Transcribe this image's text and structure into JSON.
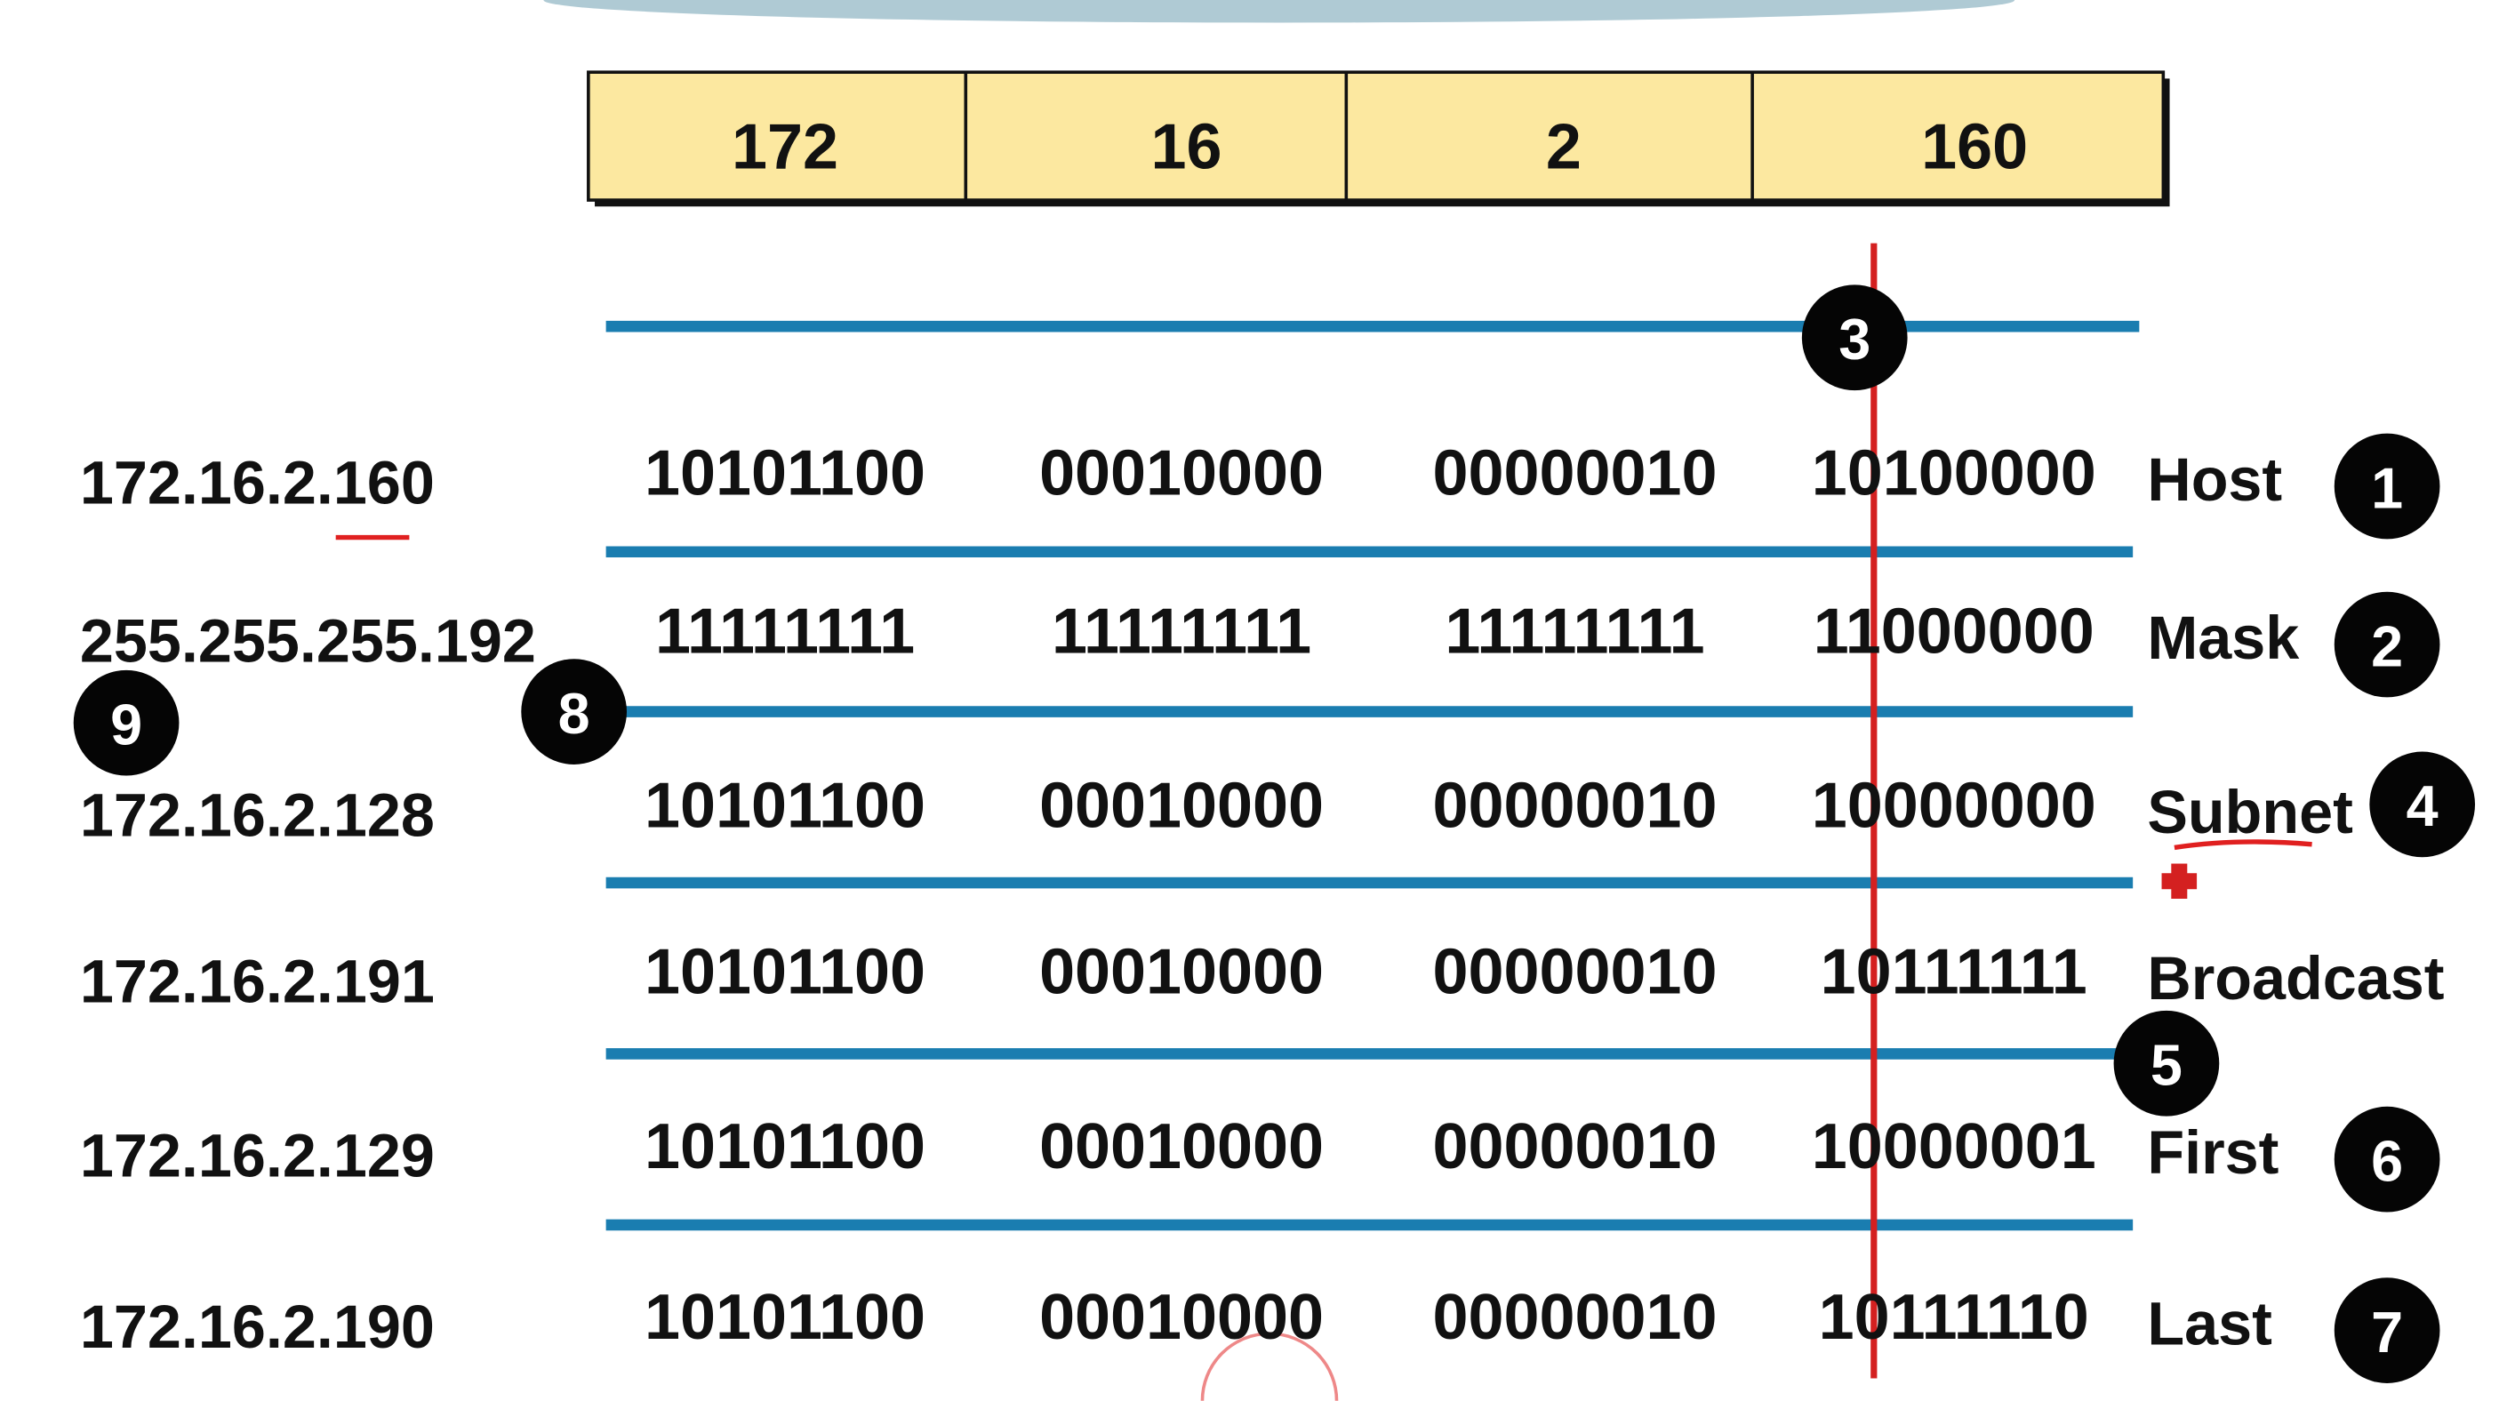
{
  "header": {
    "octets": [
      "172",
      "16",
      "2",
      "160"
    ]
  },
  "rows": [
    {
      "ip": "172.16.2.160",
      "bits": [
        "10101100",
        "00010000",
        "00000010",
        "10100000"
      ],
      "label": "Host",
      "badge": "1"
    },
    {
      "ip": "255.255.255.192",
      "bits": [
        "11111111",
        "11111111",
        "11111111",
        "11000000"
      ],
      "label": "Mask",
      "badge": "2"
    },
    {
      "ip": "172.16.2.128",
      "bits": [
        "10101100",
        "00010000",
        "00000010",
        "10000000"
      ],
      "label": "Subnet",
      "badge": "4"
    },
    {
      "ip": "172.16.2.191",
      "bits": [
        "10101100",
        "00010000",
        "00000010",
        "10111111"
      ],
      "label": "Broadcast"
    },
    {
      "ip": "172.16.2.129",
      "bits": [
        "10101100",
        "00010000",
        "00000010",
        "10000001"
      ],
      "label": "First",
      "badge": "6"
    },
    {
      "ip": "172.16.2.190",
      "bits": [
        "10101100",
        "00010000",
        "00000010",
        "10111110"
      ],
      "label": "Last",
      "badge": "7"
    }
  ],
  "markers": [
    "3",
    "8",
    "9",
    "5"
  ]
}
